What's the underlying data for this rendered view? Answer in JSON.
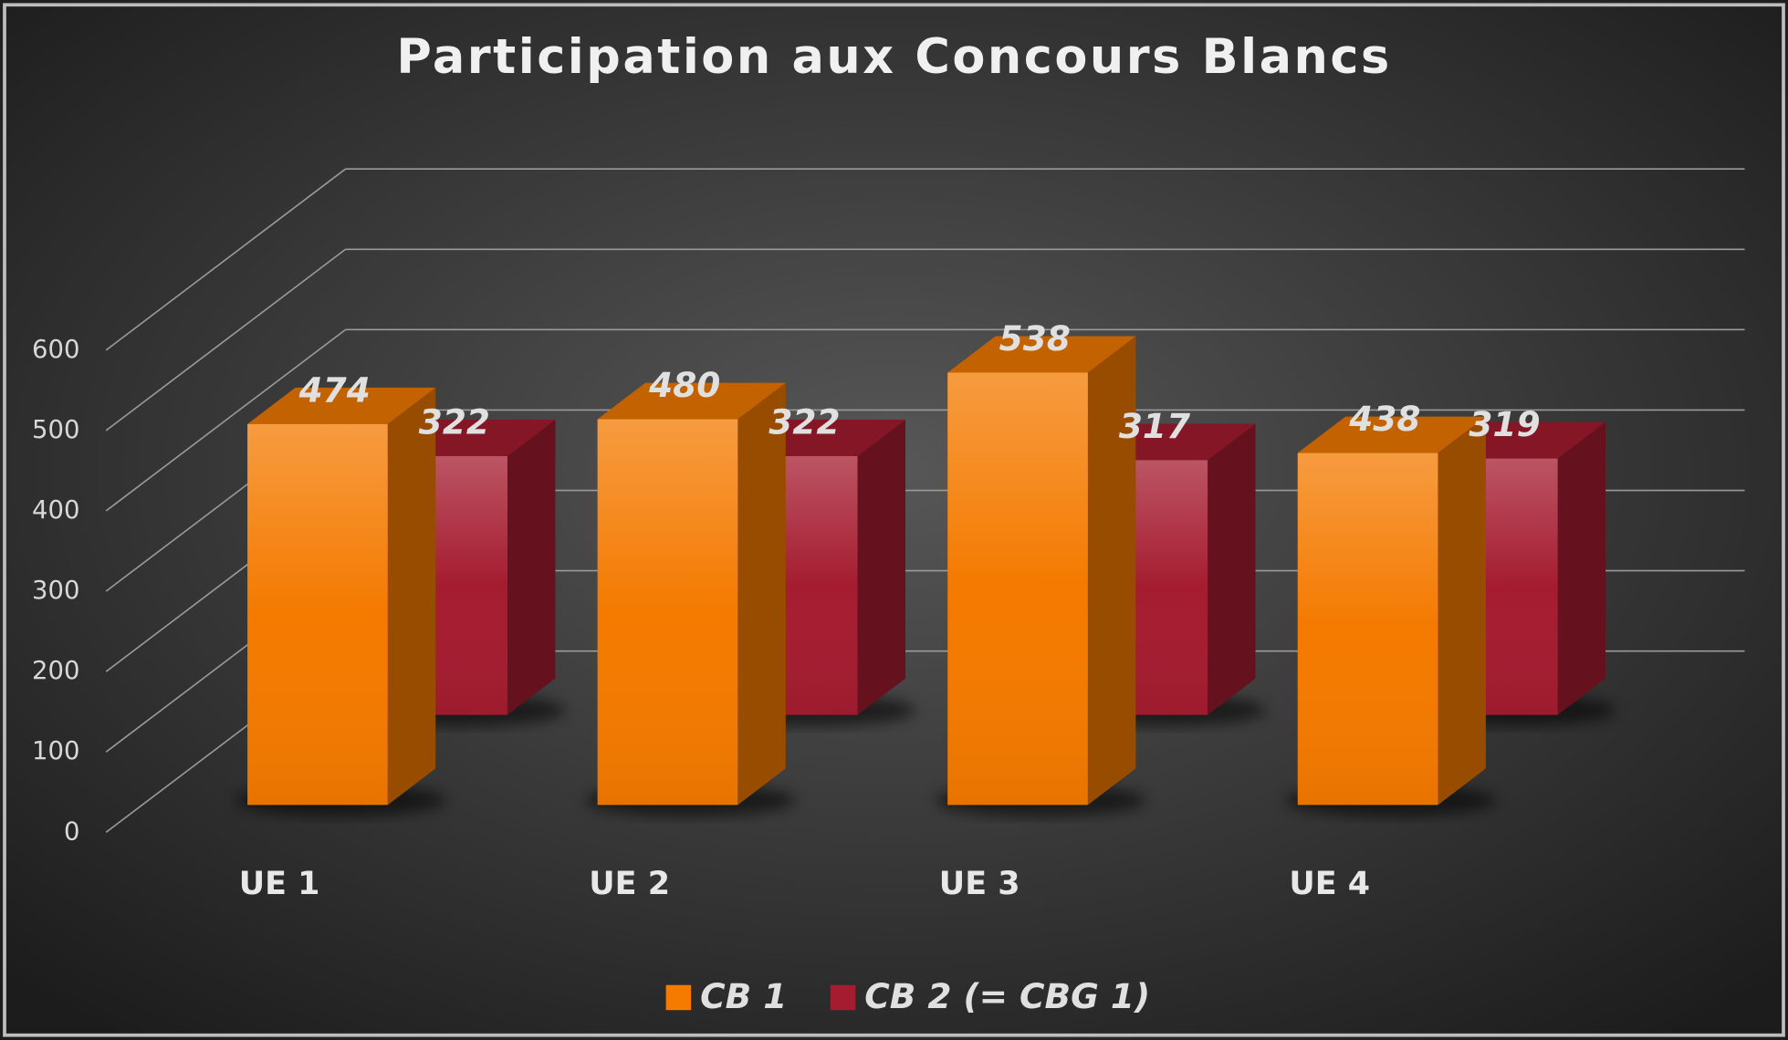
{
  "chart_data": {
    "type": "bar",
    "title": "Participation aux Concours Blancs",
    "categories": [
      "UE 1",
      "UE 2",
      "UE 3",
      "UE 4"
    ],
    "series": [
      {
        "name": "CB 1",
        "color": "#f47a00",
        "values": [
          474,
          480,
          538,
          438
        ]
      },
      {
        "name": "CB 2 (= CBG 1)",
        "color": "#a51c30",
        "values": [
          322,
          322,
          317,
          319
        ]
      }
    ],
    "ylim": [
      0,
      600
    ],
    "yticks": [
      0,
      100,
      200,
      300,
      400,
      500,
      600
    ],
    "grid": true,
    "legend": "bottom"
  }
}
